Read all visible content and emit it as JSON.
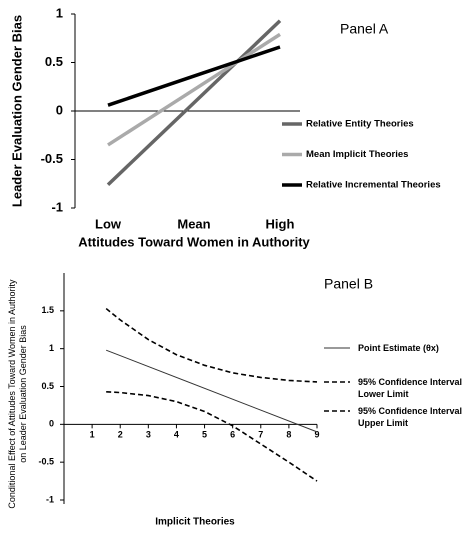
{
  "chart_data": [
    {
      "type": "line",
      "annotation": "Panel A",
      "x_label": "Attitudes Toward Women in Authority",
      "y_label": "Leader Evaluation Gender Bias",
      "categories": [
        "Low",
        "Mean",
        "High"
      ],
      "series": [
        {
          "name": "Relative Entity Theories",
          "color": "#666666",
          "values": [
            -0.76,
            0.085,
            0.93
          ]
        },
        {
          "name": "Mean Implicit Theories",
          "color": "#aaaaaa",
          "values": [
            -0.35,
            0.22,
            0.79
          ]
        },
        {
          "name": "Relative Incremental Theories",
          "color": "#000000",
          "values": [
            0.06,
            0.36,
            0.66
          ]
        }
      ],
      "ylim": [
        -1,
        1
      ],
      "yticks": [
        -1,
        -0.5,
        0,
        0.5,
        1
      ],
      "legend": "right"
    },
    {
      "type": "line",
      "annotation": "Panel B",
      "x_label": "Implicit Theories",
      "y_label": "Conditional Effect of Attitudes Toward Women in Authority on Leader Evaluation Gender Bias",
      "series": [
        {
          "name": "Point Estimate (θx)",
          "color": "#333333",
          "dash": false,
          "x": [
            1.5,
            9
          ],
          "values": [
            0.98,
            -0.1
          ]
        },
        {
          "name": "95% Confidence Interval Lower Limit",
          "color": "#000000",
          "dash": true,
          "x": [
            1.5,
            2,
            3,
            4,
            5,
            6,
            7,
            8,
            9
          ],
          "values": [
            0.43,
            0.42,
            0.38,
            0.3,
            0.17,
            -0.02,
            -0.26,
            -0.5,
            -0.75
          ]
        },
        {
          "name": "95% Confidence Interval Upper Limit",
          "color": "#000000",
          "dash": true,
          "x": [
            1.5,
            2,
            3,
            4,
            5,
            6,
            7,
            8,
            9
          ],
          "values": [
            1.53,
            1.38,
            1.12,
            0.92,
            0.78,
            0.68,
            0.62,
            0.58,
            0.56
          ]
        }
      ],
      "xlim": [
        0,
        9
      ],
      "xticks": [
        1,
        2,
        3,
        4,
        5,
        6,
        7,
        8,
        9
      ],
      "ylim": [
        -1,
        2
      ],
      "yticks": [
        -1,
        -0.5,
        0,
        0.5,
        1,
        1.5
      ],
      "legend": "right"
    }
  ]
}
